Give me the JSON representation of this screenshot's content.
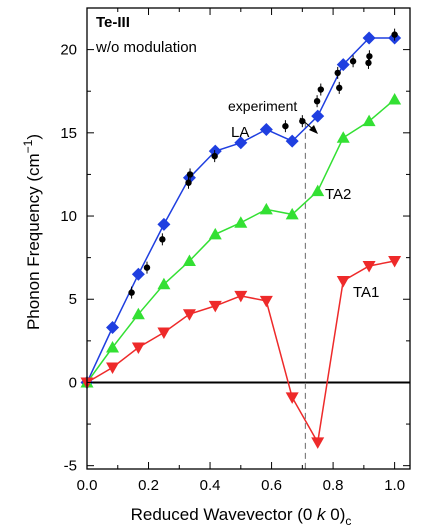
{
  "chart_data": {
    "type": "line",
    "title": "Te-III",
    "subtitle": "w/o modulation",
    "xlabel": {
      "pre": "Reduced Wavevector (0 ",
      "italic": "k",
      "post": " 0)",
      "sub": "c"
    },
    "ylabel": {
      "pre": "Phonon Frequency (cm",
      "sup": "−1",
      "post": ")"
    },
    "xlim": [
      0.0,
      1.05
    ],
    "ylim": [
      -5.2,
      22.5
    ],
    "xticks": [
      "0.0",
      "0.2",
      "0.4",
      "0.6",
      "0.8",
      "1.0"
    ],
    "xtick_values": [
      0.0,
      0.2,
      0.4,
      0.6,
      0.8,
      1.0
    ],
    "yticks": [
      "-5",
      "0",
      "5",
      "10",
      "15",
      "20"
    ],
    "ytick_values": [
      -5,
      0,
      5,
      10,
      15,
      20
    ],
    "zero_line": 0,
    "dashed_line_x": 0.71,
    "colors": {
      "LA": "#1f3fe0",
      "TA2": "#33e033",
      "TA1": "#ee2a2a",
      "experiment": "#000000",
      "dashed": "#808080"
    },
    "series": [
      {
        "name": "LA",
        "marker": "diamond",
        "x": [
          0.0,
          0.083,
          0.167,
          0.25,
          0.333,
          0.417,
          0.5,
          0.583,
          0.667,
          0.75,
          0.833,
          0.917,
          1.0
        ],
        "y": [
          0.0,
          3.3,
          6.5,
          9.5,
          12.3,
          13.9,
          14.4,
          15.2,
          14.5,
          16.0,
          19.1,
          20.7,
          20.7
        ]
      },
      {
        "name": "TA2",
        "marker": "triangle-up",
        "x": [
          0.0,
          0.083,
          0.167,
          0.25,
          0.333,
          0.417,
          0.5,
          0.583,
          0.667,
          0.75,
          0.833,
          0.917,
          1.0
        ],
        "y": [
          0.0,
          2.1,
          4.1,
          5.9,
          7.3,
          8.9,
          9.6,
          10.4,
          10.1,
          11.5,
          14.7,
          15.7,
          17.0
        ]
      },
      {
        "name": "TA1",
        "marker": "triangle-down",
        "x": [
          0.0,
          0.083,
          0.167,
          0.25,
          0.333,
          0.417,
          0.5,
          0.583,
          0.667,
          0.75,
          0.833,
          0.917,
          1.0
        ],
        "y": [
          0.0,
          0.9,
          2.1,
          3.0,
          4.1,
          4.6,
          5.2,
          4.9,
          -0.9,
          -3.6,
          6.1,
          7.0,
          7.3
        ]
      },
      {
        "name": "experiment",
        "marker": "circle",
        "points": [
          {
            "x": 0.145,
            "y": 5.4
          },
          {
            "x": 0.195,
            "y": 6.9
          },
          {
            "x": 0.245,
            "y": 8.6
          },
          {
            "x": 0.33,
            "y": 12.0
          },
          {
            "x": 0.335,
            "y": 12.5
          },
          {
            "x": 0.415,
            "y": 13.6
          },
          {
            "x": 0.645,
            "y": 15.4
          },
          {
            "x": 0.7,
            "y": 15.7
          },
          {
            "x": 0.748,
            "y": 16.9
          },
          {
            "x": 0.76,
            "y": 17.6
          },
          {
            "x": 0.815,
            "y": 18.6
          },
          {
            "x": 0.82,
            "y": 17.7
          },
          {
            "x": 0.865,
            "y": 19.3
          },
          {
            "x": 0.915,
            "y": 19.2
          },
          {
            "x": 0.918,
            "y": 19.6
          },
          {
            "x": 1.0,
            "y": 20.9
          }
        ]
      }
    ],
    "labels": {
      "LA": "LA",
      "TA2": "TA2",
      "TA1": "TA1",
      "experiment": "experiment"
    }
  }
}
